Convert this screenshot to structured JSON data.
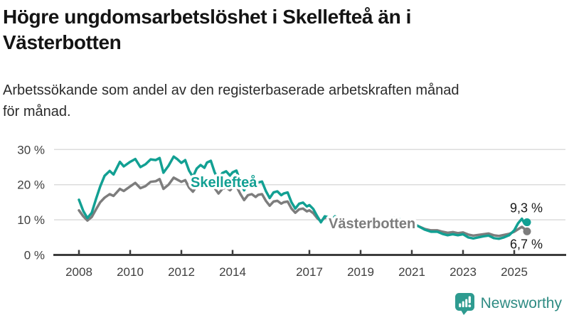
{
  "header": {
    "title_line1": "Högre ungdomsarbetslöshet i Skellefteå än i",
    "title_line2": "Västerbotten",
    "subtitle_line1": "Arbetssökande som andel av den registerbaserade arbetskraften månad",
    "subtitle_line2": "för månad."
  },
  "footer": {
    "brand": "Newsworthy"
  },
  "colors": {
    "skelleftea": "#12A093",
    "vasterbotten": "#7D7D7D",
    "axis": "#3C3C3C",
    "grid": "#DCDCDC",
    "annotation": "#1A1A1A",
    "brand": "#2E8B83"
  },
  "chart_data": {
    "type": "line",
    "title": "Högre ungdomsarbetslöshet i Skellefteå än i Västerbotten",
    "subtitle": "Arbetssökande som andel av den registerbaserade arbetskraften månad för månad.",
    "unit": "%",
    "ylim": [
      0,
      32
    ],
    "grid": "horizontal",
    "legend_position": "inline-labels",
    "yticks": [
      {
        "value": 0,
        "label": "0 %"
      },
      {
        "value": 10,
        "label": "10 %"
      },
      {
        "value": 20,
        "label": "20 %"
      },
      {
        "value": 30,
        "label": "30 %"
      }
    ],
    "xticks": [
      2008,
      2010,
      2012,
      2014,
      2017,
      2019,
      2021,
      2023,
      2025
    ],
    "x_range": [
      2008,
      2025.5
    ],
    "series": [
      {
        "name": "Skellefteå",
        "color": "#12A093",
        "end_label": "9,3 %",
        "x": [
          2008.0,
          2008.17,
          2008.33,
          2008.5,
          2008.67,
          2008.83,
          2009.0,
          2009.2,
          2009.35,
          2009.6,
          2009.75,
          2010.0,
          2010.2,
          2010.4,
          2010.6,
          2010.8,
          2011.0,
          2011.15,
          2011.3,
          2011.5,
          2011.7,
          2011.85,
          2012.0,
          2012.15,
          2012.3,
          2012.45,
          2012.6,
          2012.75,
          2012.9,
          2013.0,
          2013.15,
          2013.3,
          2013.45,
          2013.6,
          2013.75,
          2013.9,
          2014.0,
          2014.15,
          2014.3,
          2014.45,
          2014.6,
          2014.75,
          2014.9,
          2015.0,
          2015.15,
          2015.3,
          2015.45,
          2015.6,
          2015.75,
          2015.9,
          2016.0,
          2016.15,
          2016.3,
          2016.45,
          2016.6,
          2016.75,
          2016.9,
          2017.0,
          2017.15,
          2017.3,
          2017.45,
          2017.6,
          2017.75,
          2017.9,
          2018.0,
          2018.25,
          2018.5,
          2018.75,
          2019.0,
          2019.25,
          2019.5,
          2019.75,
          2020.0,
          2020.25,
          2020.5,
          2020.75,
          2021.0,
          2021.25,
          2021.5,
          2021.75,
          2022.0,
          2022.2,
          2022.4,
          2022.6,
          2022.8,
          2023.0,
          2023.2,
          2023.4,
          2023.6,
          2023.8,
          2024.0,
          2024.2,
          2024.4,
          2024.6,
          2024.8,
          2025.0,
          2025.15,
          2025.3,
          2025.4,
          2025.5
        ],
        "values": [
          15.7,
          12.5,
          10.5,
          12.0,
          16.0,
          19.5,
          22.5,
          23.9,
          22.9,
          26.5,
          25.2,
          26.5,
          27.3,
          25.0,
          25.8,
          27.2,
          27.0,
          27.6,
          23.4,
          25.4,
          28.0,
          27.2,
          26.2,
          27.0,
          24.0,
          22.2,
          24.6,
          25.6,
          24.8,
          26.3,
          26.8,
          23.5,
          21.4,
          23.3,
          23.8,
          22.6,
          23.5,
          24.0,
          21.0,
          18.4,
          20.3,
          20.8,
          19.8,
          20.6,
          20.9,
          18.2,
          16.2,
          17.8,
          18.1,
          17.0,
          17.5,
          17.8,
          15.0,
          13.2,
          14.6,
          14.9,
          13.8,
          14.2,
          13.1,
          11.1,
          9.3,
          11.0,
          10.7,
          10.2,
          11.0,
          9.6,
          8.8,
          9.4,
          10.0,
          9.0,
          8.4,
          9.0,
          9.6,
          10.6,
          10.2,
          9.6,
          9.2,
          8.2,
          7.2,
          6.6,
          6.6,
          6.0,
          5.6,
          5.9,
          5.6,
          5.9,
          5.0,
          4.7,
          5.0,
          5.3,
          5.5,
          4.8,
          4.6,
          5.0,
          5.6,
          7.0,
          9.0,
          10.3,
          8.9,
          9.3
        ]
      },
      {
        "name": "Västerbotten",
        "color": "#7D7D7D",
        "end_label": "6,7 %",
        "x": [
          2008.0,
          2008.17,
          2008.33,
          2008.5,
          2008.67,
          2008.83,
          2009.0,
          2009.2,
          2009.35,
          2009.6,
          2009.75,
          2010.0,
          2010.2,
          2010.4,
          2010.6,
          2010.8,
          2011.0,
          2011.15,
          2011.3,
          2011.5,
          2011.7,
          2011.85,
          2012.0,
          2012.15,
          2012.3,
          2012.45,
          2012.6,
          2012.75,
          2012.9,
          2013.0,
          2013.15,
          2013.3,
          2013.45,
          2013.6,
          2013.75,
          2013.9,
          2014.0,
          2014.15,
          2014.3,
          2014.45,
          2014.6,
          2014.75,
          2014.9,
          2015.0,
          2015.15,
          2015.3,
          2015.45,
          2015.6,
          2015.75,
          2015.9,
          2016.0,
          2016.15,
          2016.3,
          2016.45,
          2016.6,
          2016.75,
          2016.9,
          2017.0,
          2017.15,
          2017.3,
          2017.45,
          2017.6,
          2017.75,
          2017.9,
          2018.0,
          2018.25,
          2018.5,
          2018.75,
          2019.0,
          2019.25,
          2019.5,
          2019.75,
          2020.0,
          2020.25,
          2020.5,
          2020.75,
          2021.0,
          2021.25,
          2021.5,
          2021.75,
          2022.0,
          2022.2,
          2022.4,
          2022.6,
          2022.8,
          2023.0,
          2023.2,
          2023.4,
          2023.6,
          2023.8,
          2024.0,
          2024.2,
          2024.4,
          2024.6,
          2024.8,
          2025.0,
          2025.15,
          2025.3,
          2025.4,
          2025.5
        ],
        "values": [
          12.7,
          11.0,
          9.8,
          10.8,
          13.0,
          15.0,
          16.3,
          17.3,
          16.8,
          18.8,
          18.2,
          19.5,
          20.5,
          19.0,
          19.6,
          20.8,
          21.0,
          21.6,
          18.8,
          20.0,
          22.0,
          21.4,
          20.8,
          21.3,
          19.2,
          18.0,
          19.6,
          20.3,
          19.8,
          21.0,
          21.4,
          19.0,
          17.5,
          18.8,
          19.2,
          18.4,
          19.2,
          19.6,
          17.4,
          15.6,
          17.0,
          17.3,
          16.5,
          17.1,
          17.3,
          15.4,
          14.0,
          15.2,
          15.4,
          14.6,
          15.0,
          15.2,
          13.2,
          12.0,
          13.0,
          13.2,
          12.4,
          12.7,
          11.9,
          10.5,
          9.6,
          10.6,
          10.4,
          10.0,
          10.6,
          9.6,
          9.0,
          9.4,
          9.8,
          9.0,
          8.6,
          9.0,
          9.4,
          10.2,
          9.9,
          9.4,
          9.0,
          8.2,
          7.4,
          7.0,
          7.0,
          6.6,
          6.3,
          6.5,
          6.2,
          6.4,
          5.8,
          5.5,
          5.7,
          5.9,
          6.1,
          5.6,
          5.4,
          5.7,
          6.0,
          6.6,
          7.3,
          8.0,
          7.4,
          6.7
        ]
      }
    ]
  }
}
